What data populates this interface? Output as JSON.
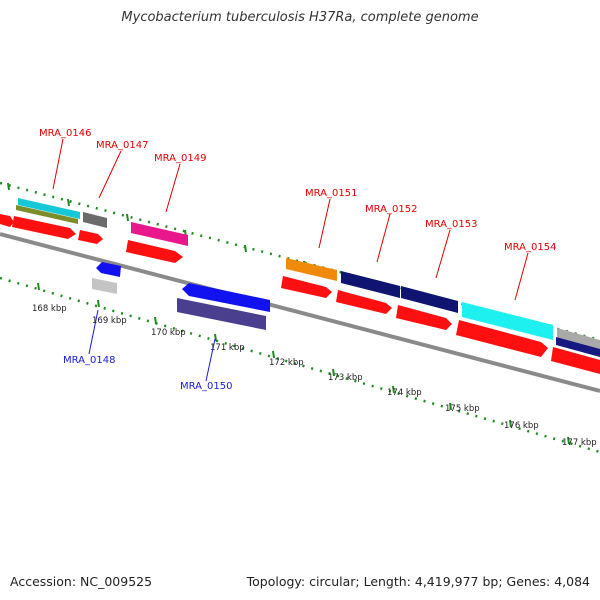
{
  "title": "Mycobacterium tuberculosis H37Ra, complete genome",
  "footer": {
    "accession": "Accession: NC_009525",
    "topology": "Topology: circular; Length: 4,419,977 bp; Genes: 4,084"
  },
  "colors": {
    "backbone": "#8a8a8a",
    "tick_dots": "#1f8a1f",
    "label_forward": "#e00000",
    "label_reverse": "#1a1adc"
  },
  "scale_labels": [
    "168 kbp",
    "169 kbp",
    "170 kbp",
    "171 kbp",
    "172 kbp",
    "173 kbp",
    "174 kbp",
    "175 kbp",
    "176 kbp",
    "177 kbp"
  ],
  "gene_labels": {
    "forward": [
      "MRA_0146",
      "MRA_0147",
      "MRA_0149",
      "MRA_0151",
      "MRA_0152",
      "MRA_0153",
      "MRA_0154"
    ],
    "reverse": [
      "MRA_0148",
      "MRA_0150"
    ]
  }
}
